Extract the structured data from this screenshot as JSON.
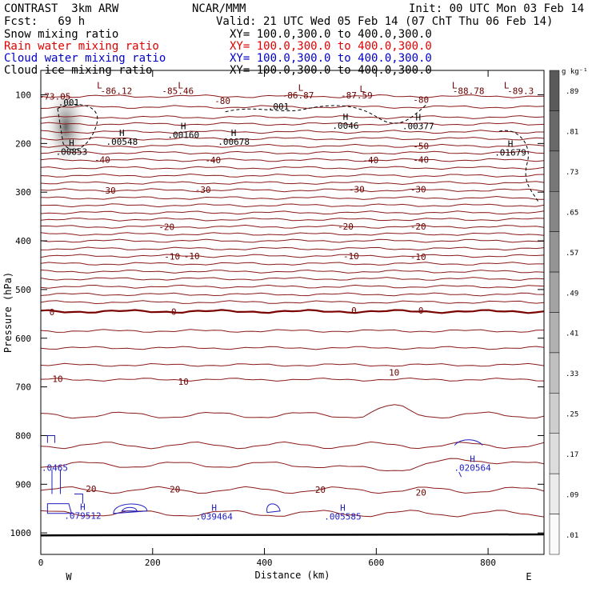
{
  "header": {
    "model": "CONTRAST  3km ARW",
    "org": "NCAR/MMM",
    "init": "Init: 00 UTC Mon 03 Feb 14",
    "fcst": "Fcst:   69 h",
    "valid": "Valid: 21 UTC Wed 05 Feb 14 (07 ChT Thu 06 Feb 14)",
    "fields": [
      {
        "name": "Snow mixing ratio",
        "xy": "XY= 100.0,300.0 to 400.0,300.0",
        "color": "#000000"
      },
      {
        "name": "Rain water mixing ratio",
        "xy": "XY= 100.0,300.0 to 400.0,300.0",
        "color": "#e00000"
      },
      {
        "name": "Cloud water mixing ratio",
        "xy": "XY= 100.0,300.0 to 400.0,300.0",
        "color": "#0000c8"
      },
      {
        "name": "Cloud ice mixing ratio",
        "xy": "XY= 100.0,300.0 to 400.0,300.0",
        "color": "#000000"
      }
    ]
  },
  "chart_data": {
    "type": "cross-section contour",
    "xlabel": "Distance (km)",
    "ylabel": "Pressure (hPa)",
    "xlim": [
      0,
      900
    ],
    "ylim": [
      1040,
      50
    ],
    "x_ticks": [
      0,
      200,
      400,
      600,
      800
    ],
    "y_ticks": [
      100,
      200,
      300,
      400,
      500,
      600,
      700,
      800,
      900,
      1000
    ],
    "endpoints": {
      "left": "W",
      "right": "E"
    },
    "colorbar": {
      "unit": "g kg⁻¹",
      "labels": [
        ".89",
        ".81",
        ".73",
        ".65",
        ".57",
        ".49",
        ".41",
        ".33",
        ".25",
        ".17",
        ".09",
        ".01"
      ]
    },
    "temperature_labels": [
      {
        "text": "-73.05",
        "x": 25,
        "p": 103
      },
      {
        "text": "-86.12",
        "x": 135,
        "p": 92
      },
      {
        "text": "-85.46",
        "x": 245,
        "p": 92
      },
      {
        "text": "-86.87",
        "x": 460,
        "p": 101
      },
      {
        "text": "-87.59",
        "x": 565,
        "p": 101
      },
      {
        "text": "-88.78",
        "x": 765,
        "p": 92
      },
      {
        "text": "-89.3",
        "x": 858,
        "p": 92
      },
      {
        "text": "-80",
        "x": 325,
        "p": 112
      },
      {
        "text": "-80",
        "x": 680,
        "p": 110
      },
      {
        "text": "-50",
        "x": 680,
        "p": 205
      },
      {
        "text": "-40",
        "x": 110,
        "p": 233
      },
      {
        "text": "-40",
        "x": 308,
        "p": 234
      },
      {
        "text": "-40",
        "x": 590,
        "p": 234
      },
      {
        "text": "-40",
        "x": 680,
        "p": 233
      },
      {
        "text": "-30",
        "x": 120,
        "p": 296
      },
      {
        "text": "-30",
        "x": 290,
        "p": 295
      },
      {
        "text": "-30",
        "x": 565,
        "p": 294
      },
      {
        "text": "-30",
        "x": 675,
        "p": 294
      },
      {
        "text": "-20",
        "x": 225,
        "p": 371
      },
      {
        "text": "-20",
        "x": 545,
        "p": 370
      },
      {
        "text": "-20",
        "x": 675,
        "p": 370
      },
      {
        "text": "-10",
        "x": 235,
        "p": 432
      },
      {
        "text": "-10",
        "x": 270,
        "p": 431
      },
      {
        "text": "-10",
        "x": 555,
        "p": 431
      },
      {
        "text": "-10",
        "x": 675,
        "p": 433
      },
      {
        "text": "0",
        "x": 20,
        "p": 546
      },
      {
        "text": "0",
        "x": 238,
        "p": 545
      },
      {
        "text": "0",
        "x": 560,
        "p": 543
      },
      {
        "text": "0",
        "x": 680,
        "p": 543
      },
      {
        "text": "10",
        "x": 30,
        "p": 683
      },
      {
        "text": "10",
        "x": 255,
        "p": 689
      },
      {
        "text": "10",
        "x": 632,
        "p": 670
      },
      {
        "text": "20",
        "x": 90,
        "p": 909
      },
      {
        "text": "20",
        "x": 240,
        "p": 910
      },
      {
        "text": "20",
        "x": 500,
        "p": 911
      },
      {
        "text": "20",
        "x": 680,
        "p": 917
      }
    ],
    "isotherm_pressures": [
      103,
      125,
      146,
      160,
      176,
      190,
      205,
      219,
      234,
      250,
      266,
      281,
      296,
      312,
      327,
      342,
      356,
      371,
      386,
      400,
      416,
      431,
      447,
      463,
      478,
      494,
      510,
      526,
      545,
      585,
      620,
      655,
      685,
      758,
      820,
      860,
      912,
      960
    ],
    "extrema": [
      {
        "mark": "L",
        "x": 105,
        "p": 80
      },
      {
        "mark": "L",
        "x": 250,
        "p": 80
      },
      {
        "mark": "L",
        "x": 465,
        "p": 85
      },
      {
        "mark": "L",
        "x": 575,
        "p": 88
      },
      {
        "mark": "L",
        "x": 740,
        "p": 80
      },
      {
        "mark": "L",
        "x": 833,
        "p": 80
      },
      {
        "mark": "H",
        "x": 145,
        "p": 178,
        "value": ".00548",
        "series": "cloud-ice"
      },
      {
        "mark": "H",
        "x": 255,
        "p": 164,
        "value": ".00160",
        "series": "cloud-ice"
      },
      {
        "mark": "H",
        "x": 345,
        "p": 178,
        "value": ".00678",
        "series": "cloud-ice"
      },
      {
        "mark": "H",
        "x": 545,
        "p": 145,
        "value": ".0046",
        "series": "cloud-ice"
      },
      {
        "mark": "H",
        "x": 675,
        "p": 146,
        "value": ".00377",
        "series": "cloud-ice"
      },
      {
        "mark": "H",
        "x": 55,
        "p": 199,
        "value": ".00853",
        "series": "cloud-ice"
      },
      {
        "mark": "H",
        "x": 840,
        "p": 200,
        "value": ".01679",
        "series": "cloud-ice"
      },
      {
        "mark": "H",
        "x": 75,
        "p": 946,
        "value": ".079512",
        "series": "cloud-water"
      },
      {
        "mark": "H",
        "x": 310,
        "p": 948,
        "value": ".039464",
        "series": "cloud-water"
      },
      {
        "mark": "H",
        "x": 540,
        "p": 948,
        "value": ".005585",
        "series": "cloud-water"
      },
      {
        "mark": "H",
        "x": 772,
        "p": 848,
        "value": ".020564",
        "series": "cloud-water"
      },
      {
        "mark": "",
        "x": 25,
        "p": 866,
        "value": ".0465",
        "series": "cloud-water"
      }
    ],
    "ice_labels": [
      {
        "text": ".001",
        "x": 50,
        "p": 116
      },
      {
        "text": ".001",
        "x": 425,
        "p": 124
      }
    ]
  }
}
